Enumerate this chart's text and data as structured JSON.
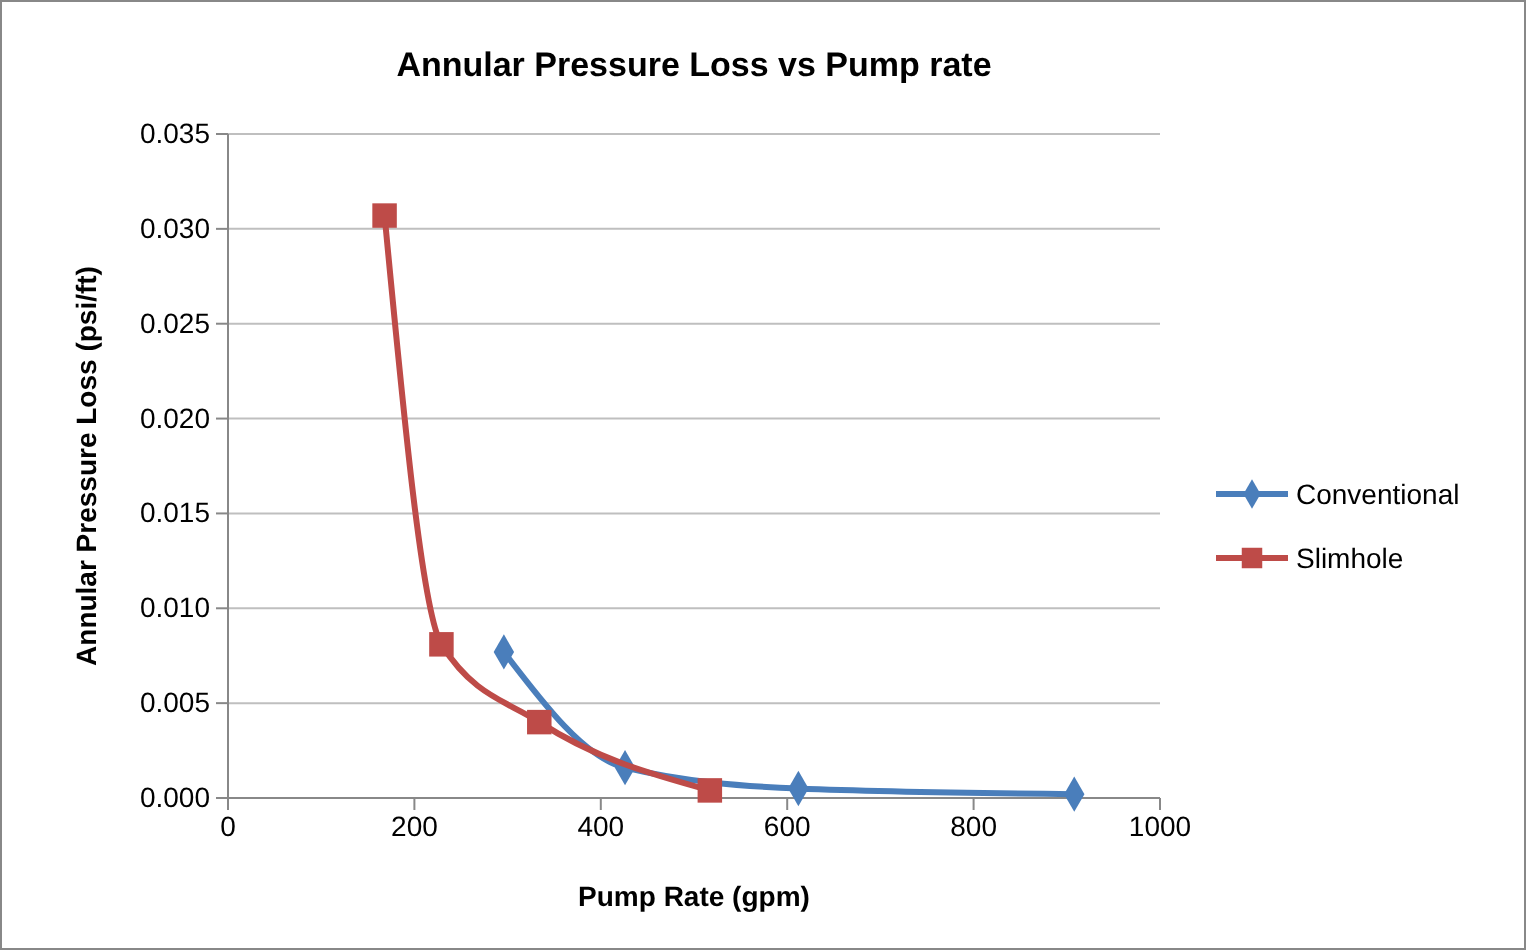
{
  "chart_data": {
    "type": "line",
    "title": "Annular Pressure Loss vs Pump rate",
    "xlabel": "Pump Rate (gpm)",
    "ylabel": "Annular Pressure Loss (psi/ft)",
    "xlim": [
      0,
      1000
    ],
    "xticks": [
      0,
      200,
      400,
      600,
      800,
      1000
    ],
    "ylim": [
      0,
      0.035
    ],
    "yticks": [
      {
        "value": 0,
        "label": "0.000"
      },
      {
        "value": 0.005,
        "label": "0.005"
      },
      {
        "value": 0.01,
        "label": "0.010"
      },
      {
        "value": 0.015,
        "label": "0.015"
      },
      {
        "value": 0.02,
        "label": "0.020"
      },
      {
        "value": 0.025,
        "label": "0.025"
      },
      {
        "value": 0.03,
        "label": "0.030"
      },
      {
        "value": 0.035,
        "label": "0.035"
      }
    ],
    "grid": "y",
    "legend": "right",
    "series": [
      {
        "name": "Conventional",
        "color": "#4a7ebb",
        "marker": "diamond",
        "x": [
          296,
          426,
          612,
          908
        ],
        "values": [
          0.0077,
          0.0016,
          0.0005,
          0.0002
        ]
      },
      {
        "name": "Slimhole",
        "color": "#be4b48",
        "marker": "square",
        "x": [
          168,
          229,
          334,
          517
        ],
        "values": [
          0.0307,
          0.0081,
          0.004,
          0.0004
        ]
      }
    ]
  }
}
